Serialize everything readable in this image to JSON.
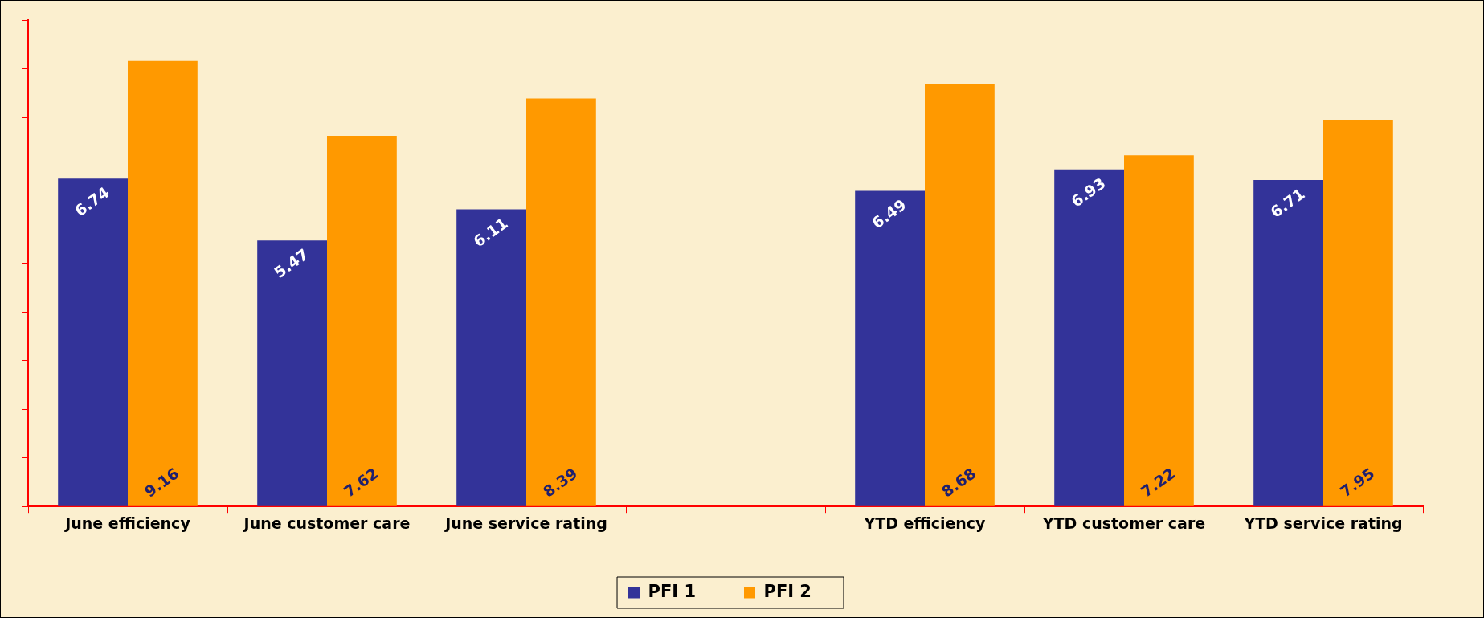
{
  "chart_data": {
    "type": "bar",
    "categories": [
      "June efficiency",
      "June customer care",
      "June service rating",
      null,
      "YTD efficiency",
      "YTD customer care",
      "YTD service rating"
    ],
    "series": [
      {
        "name": "PFI 1",
        "color": "#333399",
        "values": [
          6.74,
          5.47,
          6.11,
          null,
          6.49,
          6.93,
          6.71
        ]
      },
      {
        "name": "PFI 2",
        "color": "#ff9900",
        "values": [
          9.16,
          7.62,
          8.39,
          null,
          8.68,
          7.22,
          7.95
        ]
      }
    ],
    "ylim": [
      0,
      10
    ],
    "yticks": [
      {
        "value": 0,
        "label": null
      },
      {
        "value": 1,
        "label": null
      },
      {
        "value": 2,
        "label": null
      },
      {
        "value": 3,
        "label": null
      },
      {
        "value": 4,
        "label": null
      },
      {
        "value": 5,
        "label": null
      },
      {
        "value": 6,
        "label": null
      },
      {
        "value": 7,
        "label": null
      },
      {
        "value": 8,
        "label": null
      },
      {
        "value": 9,
        "label": null
      },
      {
        "value": 10,
        "label": null
      }
    ],
    "grid": false,
    "legend": "bottom",
    "data_labels": true
  }
}
